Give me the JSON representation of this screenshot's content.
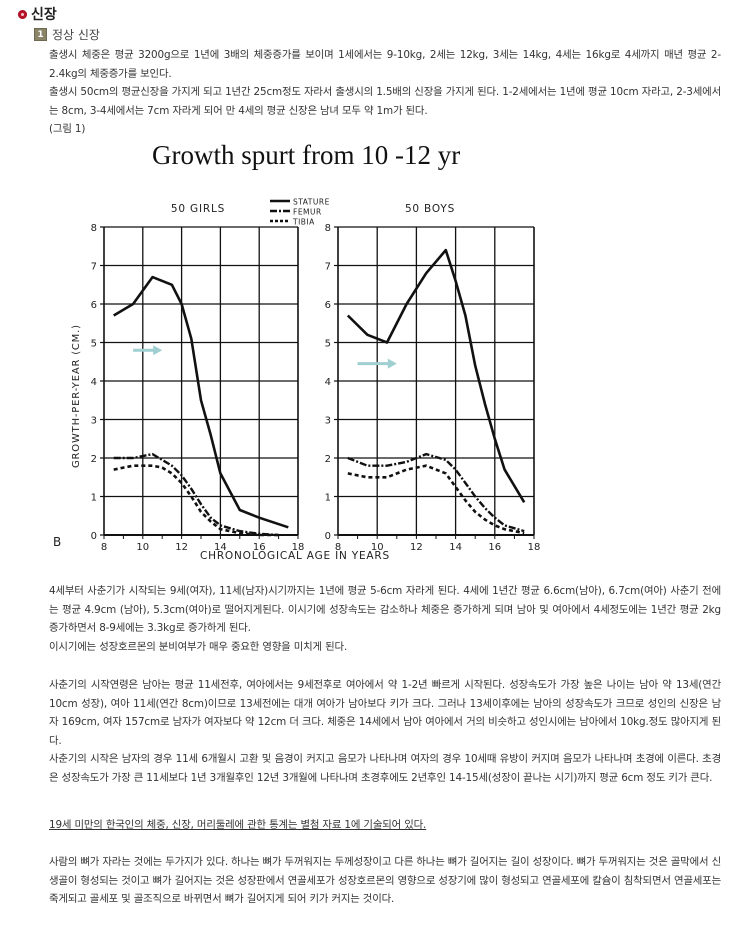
{
  "section": {
    "title": "신장",
    "bullet_color": "#b5152b"
  },
  "subsection": {
    "number": "1",
    "title": "정상 신장"
  },
  "paragraphs": {
    "p1": "출생시 체중은 평균 3200g으로 1년에 3배의 체중증가를 보이며 1세에서는 9-10kg, 2세는 12kg, 3세는 14kg, 4세는 16kg로 4세까지 매년 평균 2-2.4kg의 체중증가를 보인다.",
    "p2": "출생시 50cm의 평균신장을 가지게 되고 1년간 25cm정도 자라서 출생시의 1.5배의 신장을 가지게 된다. 1-2세에서는 1년에 평균 10cm 자라고, 2-3세에서는 8cm, 3-4세에서는 7cm 자라게 되어 만 4세의 평균 신장은 남녀 모두 약 1m가 된다.",
    "figure_ref": "(그림 1)",
    "p3": "4세부터 사춘기가 시작되는 9세(여자), 11세(남자)시기까지는 1년에 평균 5-6cm 자라게 된다. 4세에 1년간 평균 6.6cm(남아), 6.7cm(여아) 사춘기 전에는 평균 4.9cm (남아), 5.3cm(여아)로 떨어지게된다. 이시기에 성장속도는 감소하나 체중은 증가하게 되며 남아 및 여아에서 4세정도에는 1년간 평균 2kg 증가하면서 8-9세에는 3.3kg로 증가하게 된다.",
    "p4": "이시기에는 성장호르몬의 분비여부가 매우 중요한 영향을 미치게 된다.",
    "p5": "사춘기의 시작연령은 남아는 평균 11세전후, 여아에서는 9세전후로 여아에서 약 1-2년 빠르게 시작된다. 성장속도가 가장 높은 나이는 남아 약 13세(연간 10cm 성장), 여아 11세(연간 8cm)이므로 13세전에는 대개 여아가 남아보다 키가 크다. 그러나 13세이후에는 남아의 성장속도가 크므로 성인의 신장은 남자 169cm, 여자 157cm로 남자가 여자보다 약 12cm 더 크다. 체중은 14세에서 남아 여아에서 거의 비슷하고 성인시에는 남아에서 10kg.정도 많아지게 된다.",
    "p6": "사춘기의 시작은 남자의 경우 11세 6개월시 고환 및 음경이 커지고 음모가 나타나며 여자의 경우 10세때 유방이 커지며 음모가 나타나며 초경에 이른다. 초경은 성장속도가 가장 큰 11세보다 1년 3개월후인 12년 3개월에 나타나며 초경후에도 2년후인 14-15세(성장이 끝나는 시기)까지 평균 6cm 정도 키가 큰다.",
    "link": "19세 미만의 한국인의 체중, 신장, 머리둘레에 관한 통계는 별첨 자료 1에 기술되어 있다.",
    "p7": "사람의 뼈가 자라는 것에는 두가지가 있다. 하나는 뼈가 두꺼워지는 두께성장이고 다른 하나는 뼈가 길어지는 길이 성장이다. 뼈가 두꺼워지는 것은 골막에서 신생골이 형성되는 것이고 뼈가 길어지는 것은 성장판에서 연골세포가 성장호르몬의 영향으로 성장기에 많이 형성되고 연골세포에 칼슘이 침착되면서 연골세포는 죽게되고 골세포 및 골조직으로 바뀌면서 뼈가 길어지게 되어 키가 커지는 것이다."
  },
  "chart_data": {
    "type": "line",
    "title": "Growth spurt from 10 -12 yr",
    "panel_label": "B",
    "xlabel": "CHRONOLOGICAL AGE IN YEARS",
    "ylabel": "GROWTH-PER-YEAR (CM.)",
    "xlim": [
      8,
      18
    ],
    "ylim": [
      0,
      8
    ],
    "x_ticks": [
      "8",
      "10",
      "12",
      "14",
      "16",
      "18"
    ],
    "y_ticks": [
      "0",
      "1",
      "2",
      "3",
      "4",
      "5",
      "6",
      "7",
      "8"
    ],
    "grid": true,
    "legend": [
      "STATURE",
      "FEMUR",
      "TIBIA"
    ],
    "legend_position": "top-center",
    "annotation": "light-blue right-pointing arrow in each panel",
    "arrow_color": "#9fcfd0",
    "panels": [
      {
        "title": "50 GIRLS",
        "series": [
          {
            "name": "STATURE",
            "style": "solid",
            "x": [
              8.5,
              9.5,
              10.5,
              11.5,
              12.0,
              12.5,
              13.0,
              13.5,
              14.0,
              15.0,
              16.0,
              17.5
            ],
            "y": [
              5.7,
              6.0,
              6.7,
              6.5,
              6.0,
              5.1,
              3.5,
              2.6,
              1.6,
              0.65,
              0.45,
              0.2
            ]
          },
          {
            "name": "FEMUR",
            "style": "dash-dot",
            "x": [
              8.5,
              9.0,
              9.5,
              10.0,
              10.5,
              11.0,
              11.5,
              12.0,
              12.5,
              13.0,
              13.5,
              14.0,
              15.0,
              16.0,
              17.0
            ],
            "y": [
              2.0,
              2.0,
              2.0,
              2.05,
              2.1,
              1.95,
              1.8,
              1.55,
              1.2,
              0.8,
              0.45,
              0.25,
              0.1,
              0.03,
              0.0
            ]
          },
          {
            "name": "TIBIA",
            "style": "dashed",
            "x": [
              8.5,
              9.0,
              9.5,
              10.0,
              10.5,
              11.0,
              11.5,
              12.0,
              12.5,
              13.0,
              13.5,
              14.0,
              15.0,
              16.0,
              17.0
            ],
            "y": [
              1.7,
              1.75,
              1.8,
              1.8,
              1.8,
              1.75,
              1.6,
              1.35,
              1.0,
              0.6,
              0.35,
              0.15,
              0.05,
              0.0,
              0.0
            ]
          }
        ],
        "arrow": {
          "x_from": 9.5,
          "x_to": 11.0,
          "y": 4.8
        }
      },
      {
        "title": "50 BOYS",
        "series": [
          {
            "name": "STATURE",
            "style": "solid",
            "x": [
              8.5,
              9.5,
              10.5,
              11.5,
              12.5,
              13.5,
              14.0,
              14.5,
              15.0,
              15.5,
              16.0,
              16.5,
              17.5
            ],
            "y": [
              5.7,
              5.2,
              5.0,
              6.0,
              6.8,
              7.4,
              6.6,
              5.7,
              4.4,
              3.4,
              2.5,
              1.7,
              0.85
            ]
          },
          {
            "name": "FEMUR",
            "style": "dash-dot",
            "x": [
              8.5,
              9.5,
              10.5,
              11.5,
              12.5,
              13.5,
              14.0,
              14.5,
              15.0,
              15.5,
              16.0,
              16.5,
              17.5
            ],
            "y": [
              2.0,
              1.8,
              1.8,
              1.9,
              2.1,
              1.95,
              1.7,
              1.35,
              1.0,
              0.7,
              0.45,
              0.25,
              0.1
            ]
          },
          {
            "name": "TIBIA",
            "style": "dashed",
            "x": [
              8.5,
              9.5,
              10.5,
              11.5,
              12.5,
              13.5,
              14.0,
              14.5,
              15.0,
              15.5,
              16.0,
              16.5,
              17.5
            ],
            "y": [
              1.6,
              1.5,
              1.5,
              1.7,
              1.8,
              1.6,
              1.25,
              0.9,
              0.6,
              0.4,
              0.25,
              0.15,
              0.05
            ]
          }
        ],
        "arrow": {
          "x_from": 9.0,
          "x_to": 11.0,
          "y": 4.45
        }
      }
    ]
  }
}
